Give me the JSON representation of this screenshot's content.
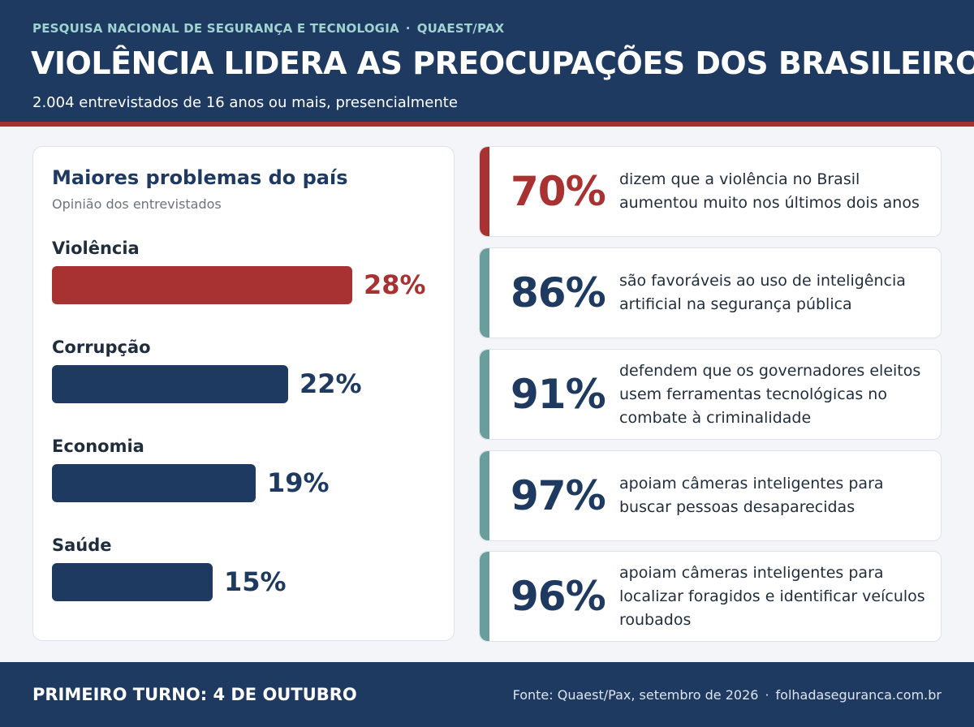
{
  "header": {
    "kicker_left": "PESQUISA NACIONAL DE SEGURANÇA E TECNOLOGIA",
    "kicker_sep": "·",
    "kicker_right": "QUAEST/PAX",
    "title": "VIOLÊNCIA LIDERA AS PREOCUPAÇÕES DOS BRASILEIROS",
    "subtitle": "2.004 entrevistados de 16 anos ou mais, presencialmente"
  },
  "colors": {
    "navy": "#1f3a60",
    "red": "#a83232",
    "teal": "#6a9e9c"
  },
  "chart_data": {
    "type": "bar",
    "orientation": "horizontal",
    "title": "Maiores problemas do país",
    "subtitle": "Opinião dos entrevistados",
    "categories": [
      "Violência",
      "Corrupção",
      "Economia",
      "Saúde"
    ],
    "values": [
      28,
      22,
      19,
      15
    ],
    "value_labels": [
      "28%",
      "22%",
      "19%",
      "15%"
    ],
    "highlight_index": 0,
    "unit": "%"
  },
  "stats": [
    {
      "value": "70%",
      "text": "dizem que a violência no Brasil aumentou muito nos últimos dois anos",
      "accent": "#a83232",
      "value_color": "#a83232"
    },
    {
      "value": "86%",
      "text": "são favoráveis ao uso de inteligência artificial na segurança pública",
      "accent": "#6a9e9c",
      "value_color": "#1f3a60"
    },
    {
      "value": "91%",
      "text": "defendem que os governadores eleitos usem ferramentas tecnológicas no combate à criminalidade",
      "accent": "#6a9e9c",
      "value_color": "#1f3a60"
    },
    {
      "value": "97%",
      "text": "apoiam câmeras inteligentes para buscar pessoas desaparecidas",
      "accent": "#6a9e9c",
      "value_color": "#1f3a60"
    },
    {
      "value": "96%",
      "text": "apoiam câmeras inteligentes para localizar foragidos e identificar veículos roubados",
      "accent": "#6a9e9c",
      "value_color": "#1f3a60"
    }
  ],
  "footer": {
    "left": "PRIMEIRO TURNO: 4 DE OUTUBRO",
    "source": "Fonte: Quaest/Pax, setembro de 2026",
    "sep": "·",
    "site": "folhadaseguranca.com.br"
  }
}
